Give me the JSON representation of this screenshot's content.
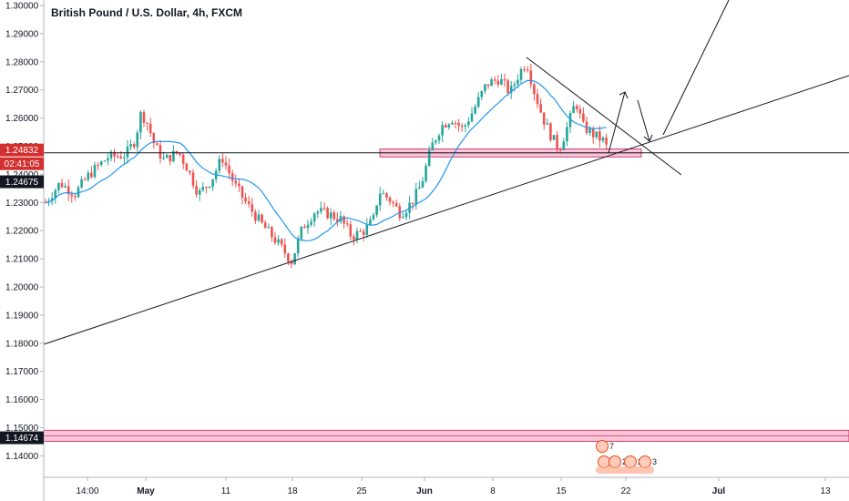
{
  "header": {
    "title": "British Pound / U.S. Dollar, 4h, FXCM"
  },
  "chart_data": {
    "type": "candlestick",
    "y_ticks": [
      "1.30000",
      "1.29000",
      "1.28000",
      "1.27000",
      "1.26000",
      "1.25000",
      "1.24000",
      "1.23000",
      "1.22000",
      "1.21000",
      "1.20000",
      "1.19000",
      "1.18000",
      "1.17000",
      "1.16000",
      "1.15000",
      "1.14000"
    ],
    "ylim": [
      1.1358,
      1.3017
    ],
    "x_ticks": [
      {
        "label": "14:00",
        "bold": false
      },
      {
        "label": "May",
        "bold": true
      },
      {
        "label": "11",
        "bold": false
      },
      {
        "label": "18",
        "bold": false
      },
      {
        "label": "25",
        "bold": false
      },
      {
        "label": "Jun",
        "bold": true
      },
      {
        "label": "8",
        "bold": false
      },
      {
        "label": "15",
        "bold": false
      },
      {
        "label": "22",
        "bold": false
      },
      {
        "label": "Jul",
        "bold": true
      },
      {
        "label": "13",
        "bold": false
      }
    ],
    "price_tags": [
      {
        "text": "1.24832",
        "bg": "#d32f2f"
      },
      {
        "text": "02:41:05",
        "bg": "#d32f2f"
      },
      {
        "text": "1.24675",
        "bg": "#131722"
      },
      {
        "text": "1.14674",
        "bg": "#131722"
      }
    ],
    "current_price": 1.24832,
    "moving_average_level": 1.24675,
    "support_zones": [
      {
        "low": 1.2462,
        "high": 1.249
      },
      {
        "low": 1.1451,
        "high": 1.1491
      }
    ],
    "colors": {
      "up": "#26a69a",
      "down": "#ef5350",
      "ma": "#2196f3",
      "zone": "#f48fb1",
      "line": "#131722"
    },
    "events": [
      {
        "label": "7"
      },
      {
        "label": "5"
      },
      {
        "label": "2"
      },
      {
        "label": "2"
      },
      {
        "label": "3"
      }
    ]
  }
}
